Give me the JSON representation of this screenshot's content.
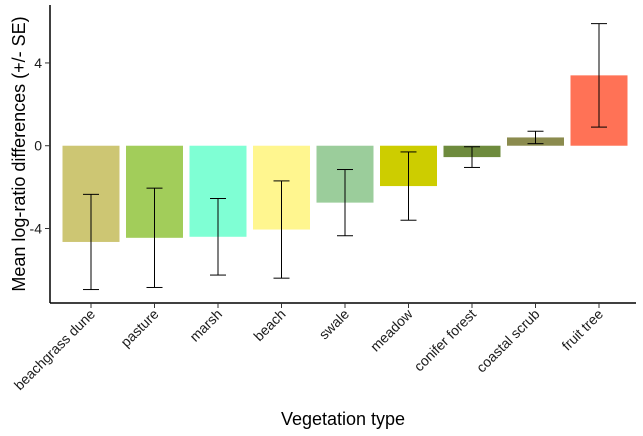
{
  "chart_data": {
    "type": "bar",
    "title": "",
    "xlabel": "Vegetation type",
    "ylabel": "Mean log-ratio differences (+/- SE)",
    "ylim": [
      -7.6,
      6.8
    ],
    "yticks": [
      -4,
      0,
      4
    ],
    "ytick_labels": [
      "-4",
      "0",
      "4"
    ],
    "grid": false,
    "legend": "none",
    "categories": [
      "beachgrass dune",
      "pasture",
      "marsh",
      "beach",
      "swale",
      "meadow",
      "conifer forest",
      "coastal scrub",
      "fruit tree"
    ],
    "values": [
      -4.65,
      -4.45,
      -4.4,
      -4.05,
      -2.75,
      -1.95,
      -0.55,
      0.4,
      3.4
    ],
    "errors": [
      2.3,
      2.4,
      1.85,
      2.35,
      1.6,
      1.65,
      0.5,
      0.3,
      2.5
    ],
    "colors": [
      "#CDC673",
      "#A2CD5A",
      "#7FFFD4",
      "#FFF68F",
      "#9BCD9B",
      "#CDCD00",
      "#6E8B3D",
      "#8B8B4E",
      "#FF7256"
    ]
  }
}
